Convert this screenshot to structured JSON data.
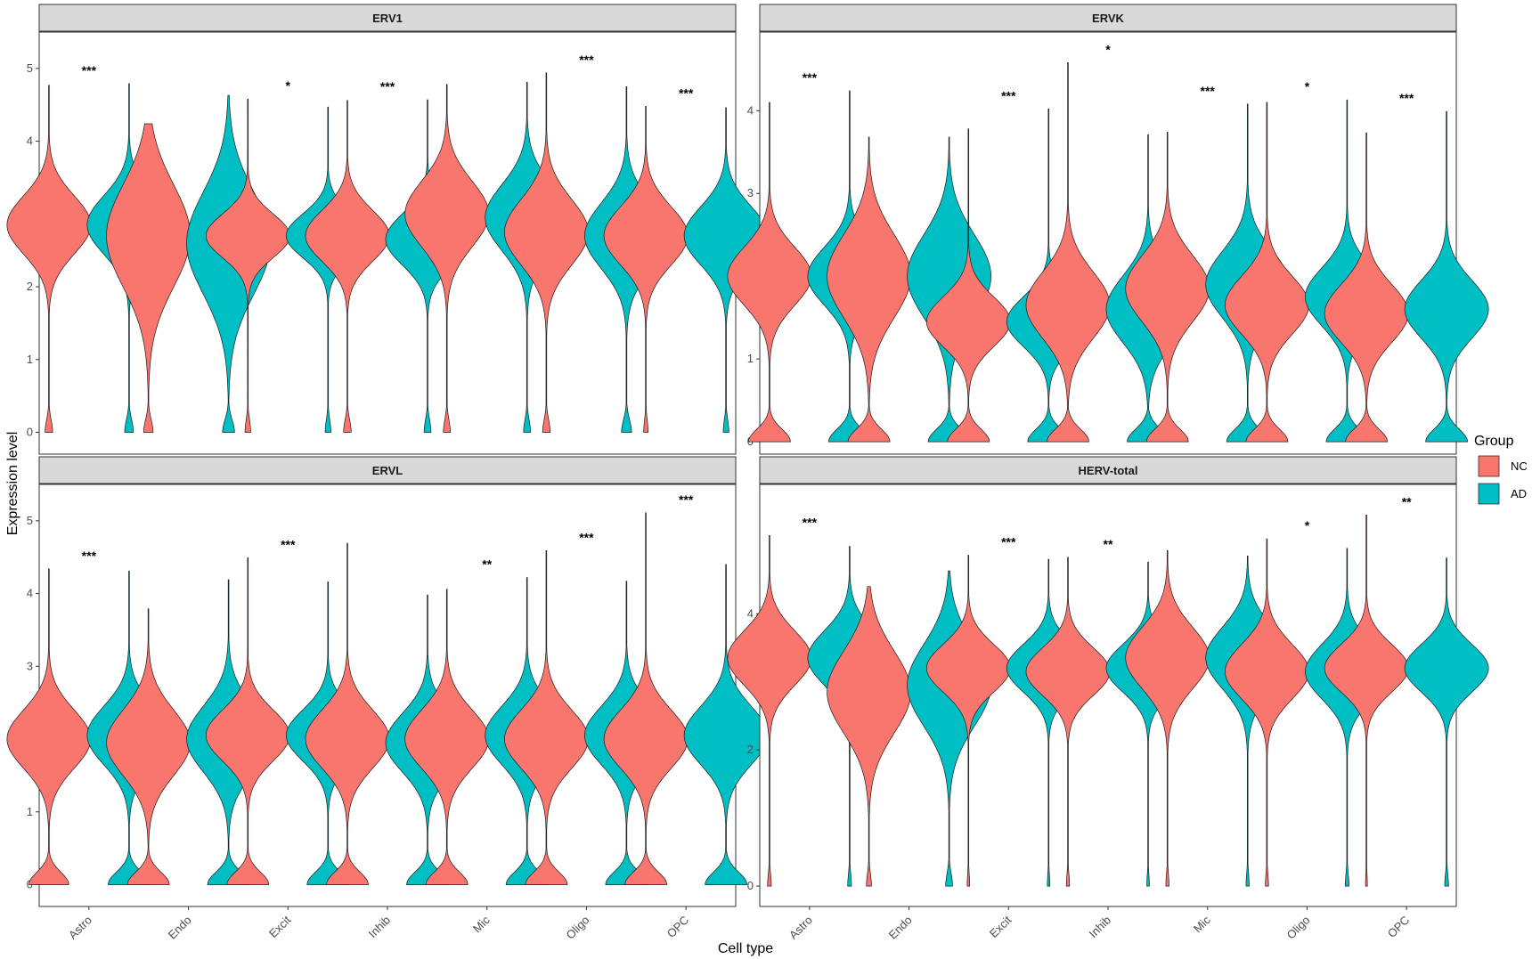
{
  "chart_data": {
    "type": "violin",
    "xlabel": "Cell type",
    "ylabel": "Expression level",
    "categories": [
      "Astro",
      "Endo",
      "Excit",
      "Inhib",
      "Mic",
      "Oligo",
      "OPC"
    ],
    "legend": {
      "title": "Group",
      "placement": "right",
      "entries": [
        {
          "name": "NC",
          "color": "#F8766D"
        },
        {
          "name": "AD",
          "color": "#00BFC4"
        }
      ]
    },
    "grid": false,
    "panels": [
      {
        "title": "ERV1",
        "ylim": [
          -0.3,
          5.5
        ],
        "yticks": [
          0,
          1,
          2,
          3,
          4,
          5
        ],
        "zero_fraction": 0.15,
        "significance": [
          "***",
          "",
          "*",
          "***",
          "",
          "***",
          "***"
        ],
        "groups": {
          "NC": [
            {
              "mode": 2.85,
              "spread": 0.4,
              "max": 4.77,
              "zero_width": 0.6
            },
            {
              "mode": 2.7,
              "spread": 0.7,
              "max": 4.24,
              "zero_width": 0.75
            },
            {
              "mode": 2.7,
              "spread": 0.3,
              "max": 4.58,
              "zero_width": 0.45
            },
            {
              "mode": 2.7,
              "spread": 0.35,
              "max": 4.56,
              "zero_width": 0.6
            },
            {
              "mode": 3.0,
              "spread": 0.45,
              "max": 4.78,
              "zero_width": 0.55
            },
            {
              "mode": 2.75,
              "spread": 0.45,
              "max": 4.94,
              "zero_width": 0.6
            },
            {
              "mode": 2.7,
              "spread": 0.4,
              "max": 4.48,
              "zero_width": 0.35
            }
          ],
          "AD": [
            {
              "mode": 2.85,
              "spread": 0.4,
              "max": 4.79,
              "zero_width": 0.7
            },
            {
              "mode": 2.6,
              "spread": 0.7,
              "max": 4.63,
              "zero_width": 0.95
            },
            {
              "mode": 2.7,
              "spread": 0.3,
              "max": 4.47,
              "zero_width": 0.45
            },
            {
              "mode": 2.65,
              "spread": 0.35,
              "max": 4.57,
              "zero_width": 0.55
            },
            {
              "mode": 2.95,
              "spread": 0.45,
              "max": 4.81,
              "zero_width": 0.55
            },
            {
              "mode": 2.7,
              "spread": 0.45,
              "max": 4.75,
              "zero_width": 0.8
            },
            {
              "mode": 2.7,
              "spread": 0.4,
              "max": 4.46,
              "zero_width": 0.45
            }
          ]
        }
      },
      {
        "title": "ERVK",
        "ylim": [
          -0.15,
          4.95
        ],
        "yticks": [
          0,
          1,
          2,
          3,
          4
        ],
        "zero_fraction": 0.5,
        "significance": [
          "***",
          "",
          "***",
          "*",
          "***",
          "*",
          "***"
        ],
        "groups": {
          "NC": [
            {
              "mode": 2.0,
              "spread": 0.35,
              "max": 4.1,
              "zero_width": 1.0
            },
            {
              "mode": 2.0,
              "spread": 0.5,
              "max": 3.68,
              "zero_width": 1.0
            },
            {
              "mode": 1.45,
              "spread": 0.3,
              "max": 3.78,
              "zero_width": 1.0
            },
            {
              "mode": 1.65,
              "spread": 0.4,
              "max": 4.58,
              "zero_width": 1.0
            },
            {
              "mode": 1.85,
              "spread": 0.4,
              "max": 3.74,
              "zero_width": 1.0
            },
            {
              "mode": 1.65,
              "spread": 0.35,
              "max": 4.1,
              "zero_width": 1.0
            },
            {
              "mode": 1.55,
              "spread": 0.35,
              "max": 3.73,
              "zero_width": 1.0
            }
          ],
          "AD": [
            {
              "mode": 2.0,
              "spread": 0.35,
              "max": 4.24,
              "zero_width": 1.0
            },
            {
              "mode": 2.0,
              "spread": 0.5,
              "max": 3.68,
              "zero_width": 1.0
            },
            {
              "mode": 1.45,
              "spread": 0.3,
              "max": 4.02,
              "zero_width": 1.0
            },
            {
              "mode": 1.6,
              "spread": 0.4,
              "max": 3.71,
              "zero_width": 1.0
            },
            {
              "mode": 1.9,
              "spread": 0.4,
              "max": 4.08,
              "zero_width": 1.0
            },
            {
              "mode": 1.75,
              "spread": 0.35,
              "max": 4.13,
              "zero_width": 1.0
            },
            {
              "mode": 1.6,
              "spread": 0.35,
              "max": 3.99,
              "zero_width": 1.0
            }
          ]
        }
      },
      {
        "title": "ERVL",
        "ylim": [
          -0.3,
          5.5
        ],
        "yticks": [
          0,
          1,
          2,
          3,
          4,
          5
        ],
        "zero_fraction": 0.5,
        "significance": [
          "***",
          "",
          "***",
          "",
          "**",
          "***",
          "***"
        ],
        "groups": {
          "NC": [
            {
              "mode": 2.0,
              "spread": 0.4,
              "max": 4.34,
              "zero_width": 0.95
            },
            {
              "mode": 1.95,
              "spread": 0.45,
              "max": 3.79,
              "zero_width": 1.0
            },
            {
              "mode": 2.05,
              "spread": 0.35,
              "max": 4.49,
              "zero_width": 1.0
            },
            {
              "mode": 2.0,
              "spread": 0.4,
              "max": 4.69,
              "zero_width": 1.0
            },
            {
              "mode": 2.0,
              "spread": 0.4,
              "max": 4.06,
              "zero_width": 1.0
            },
            {
              "mode": 2.0,
              "spread": 0.4,
              "max": 4.59,
              "zero_width": 1.0
            },
            {
              "mode": 2.0,
              "spread": 0.4,
              "max": 5.11,
              "zero_width": 1.0
            }
          ],
          "AD": [
            {
              "mode": 2.05,
              "spread": 0.4,
              "max": 4.31,
              "zero_width": 1.0
            },
            {
              "mode": 2.0,
              "spread": 0.45,
              "max": 4.19,
              "zero_width": 1.0
            },
            {
              "mode": 2.05,
              "spread": 0.35,
              "max": 4.16,
              "zero_width": 1.0
            },
            {
              "mode": 1.95,
              "spread": 0.4,
              "max": 3.98,
              "zero_width": 1.0
            },
            {
              "mode": 2.05,
              "spread": 0.4,
              "max": 4.22,
              "zero_width": 1.0
            },
            {
              "mode": 2.05,
              "spread": 0.4,
              "max": 4.17,
              "zero_width": 1.0
            },
            {
              "mode": 2.05,
              "spread": 0.4,
              "max": 4.4,
              "zero_width": 1.0
            }
          ]
        }
      },
      {
        "title": "HERV-total",
        "ylim": [
          -0.3,
          5.9
        ],
        "yticks": [
          0,
          2,
          4
        ],
        "zero_fraction": 0.15,
        "significance": [
          "***",
          "",
          "***",
          "**",
          "",
          "*",
          "**"
        ],
        "groups": {
          "NC": [
            {
              "mode": 3.35,
              "spread": 0.4,
              "max": 5.15,
              "zero_width": 0.3
            },
            {
              "mode": 2.85,
              "spread": 0.6,
              "max": 4.4,
              "zero_width": 0.4
            },
            {
              "mode": 3.2,
              "spread": 0.35,
              "max": 4.86,
              "zero_width": 0.2
            },
            {
              "mode": 3.15,
              "spread": 0.35,
              "max": 4.83,
              "zero_width": 0.25
            },
            {
              "mode": 3.35,
              "spread": 0.45,
              "max": 4.93,
              "zero_width": 0.25
            },
            {
              "mode": 3.15,
              "spread": 0.4,
              "max": 5.1,
              "zero_width": 0.25
            },
            {
              "mode": 3.2,
              "spread": 0.35,
              "max": 5.45,
              "zero_width": 0.15
            }
          ],
          "AD": [
            {
              "mode": 3.35,
              "spread": 0.4,
              "max": 4.99,
              "zero_width": 0.3
            },
            {
              "mode": 2.95,
              "spread": 0.6,
              "max": 4.63,
              "zero_width": 0.55
            },
            {
              "mode": 3.2,
              "spread": 0.35,
              "max": 4.8,
              "zero_width": 0.2
            },
            {
              "mode": 3.2,
              "spread": 0.35,
              "max": 4.76,
              "zero_width": 0.2
            },
            {
              "mode": 3.35,
              "spread": 0.45,
              "max": 4.85,
              "zero_width": 0.25
            },
            {
              "mode": 3.15,
              "spread": 0.4,
              "max": 4.96,
              "zero_width": 0.3
            },
            {
              "mode": 3.2,
              "spread": 0.35,
              "max": 4.82,
              "zero_width": 0.3
            }
          ]
        }
      }
    ]
  }
}
